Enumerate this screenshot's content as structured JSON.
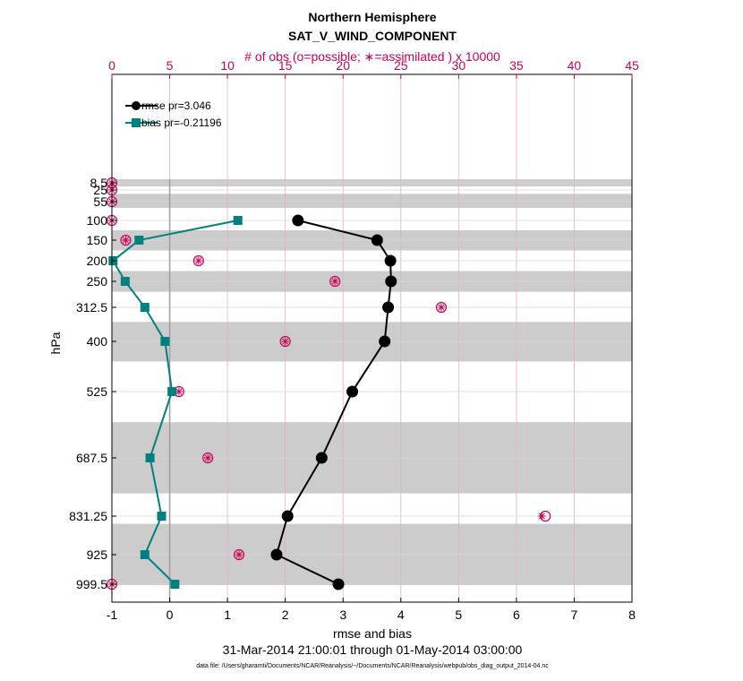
{
  "title_line1": "Northern Hemisphere",
  "title_line2": "SAT_V_WIND_COMPONENT",
  "top_axis_label": "# of obs (o=possible; ∗=assimilated ) x 10000",
  "period_label": "31-Mar-2014 21:00:01 through 01-May-2014 03:00:00",
  "footnote": "data file: /Users/gharamti/Documents/NCAR/Reanalysis/~/Documents/NCAR/Reanalysis/webpub/obs_diag_output_2014-04.nc",
  "colors": {
    "rmse": "#000000",
    "bias": "#008080",
    "obs": "#cc0055",
    "band": "#cccccc",
    "zero_line": "#a0a0a0"
  },
  "chart_data": {
    "type": "line",
    "xlabel": "rmse and bias",
    "ylabel": "hPa",
    "xlim": [
      -1,
      8
    ],
    "x_ticks": [
      -1,
      0,
      1,
      2,
      3,
      4,
      5,
      6,
      7,
      8
    ],
    "top_xlim": [
      0,
      45
    ],
    "top_ticks": [
      0,
      5,
      10,
      15,
      20,
      25,
      30,
      35,
      40,
      45
    ],
    "levels": [
      8.5,
      25,
      55,
      100,
      150,
      200,
      250,
      312.5,
      400,
      525,
      687.5,
      831.25,
      925,
      999.5
    ],
    "level_labels": [
      "8.5",
      "25",
      "55",
      "100",
      "150",
      "200",
      "250",
      "312.5",
      "400",
      "525",
      "687.5",
      "831.25",
      "925",
      "999.5"
    ],
    "bands": [
      [
        0,
        17
      ],
      [
        35,
        70
      ],
      [
        125,
        175
      ],
      [
        225,
        275
      ],
      [
        350,
        450
      ],
      [
        600,
        775
      ],
      [
        850,
        1000
      ]
    ],
    "series": [
      {
        "name": "rmse pr=3.046",
        "levels": [
          100,
          150,
          200,
          250,
          312.5,
          400,
          525,
          687.5,
          831.25,
          925,
          999.5
        ],
        "values": [
          2.22,
          3.59,
          3.82,
          3.83,
          3.78,
          3.72,
          3.16,
          2.63,
          2.04,
          1.85,
          2.92
        ]
      },
      {
        "name": "bias pr=-0.21196",
        "levels": [
          100,
          150,
          200,
          250,
          312.5,
          400,
          525,
          687.5,
          831.25,
          925,
          999.5
        ],
        "values": [
          1.18,
          -0.53,
          -0.98,
          -0.77,
          -0.43,
          -0.08,
          0.04,
          -0.34,
          -0.14,
          -0.43,
          0.09
        ]
      }
    ],
    "obs_possible": {
      "levels": [
        8.5,
        25,
        55,
        100,
        150,
        200,
        250,
        312.5,
        400,
        525,
        687.5,
        831.25,
        925,
        999.5
      ],
      "values": [
        0,
        0,
        0,
        0,
        1.2,
        7.5,
        19.3,
        28.5,
        15.0,
        5.8,
        8.3,
        37.5,
        11.0,
        0
      ]
    },
    "obs_assimilated": {
      "levels": [
        8.5,
        25,
        55,
        100,
        150,
        200,
        250,
        312.5,
        400,
        525,
        687.5,
        831.25,
        925,
        999.5
      ],
      "values": [
        0,
        0,
        0,
        0,
        1.2,
        7.5,
        19.3,
        28.5,
        15.0,
        5.8,
        8.3,
        37.2,
        11.0,
        0
      ]
    }
  }
}
